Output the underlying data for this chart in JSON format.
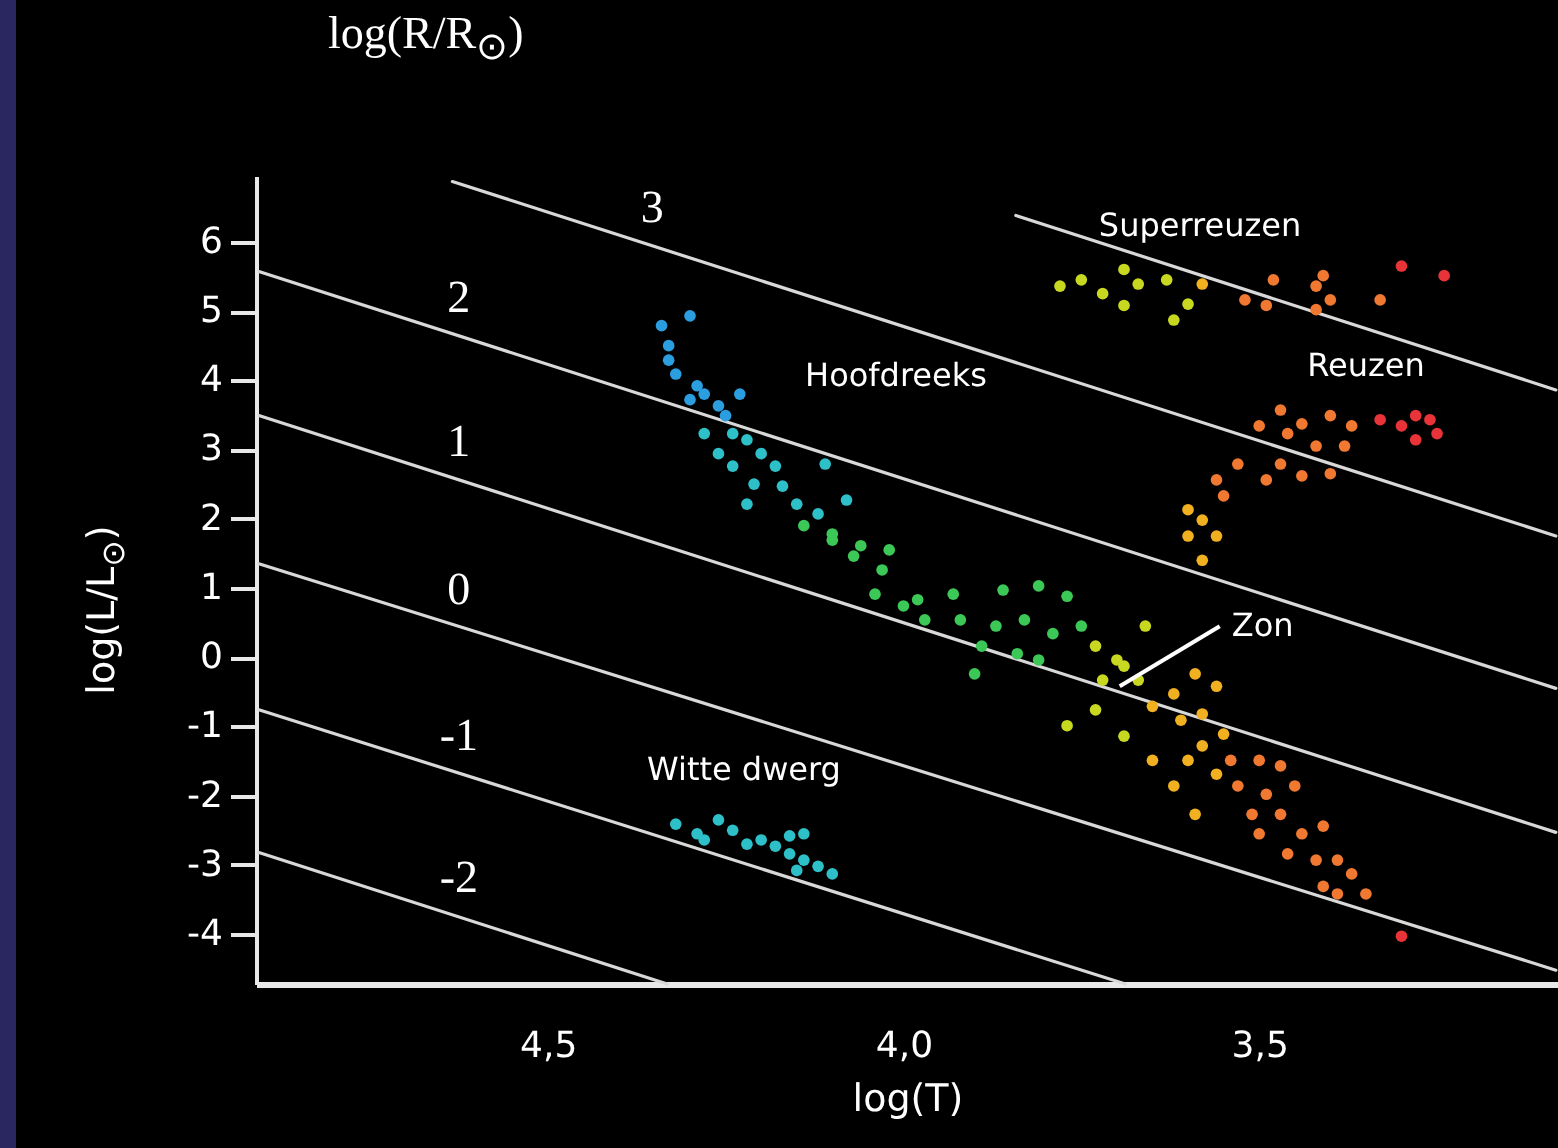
{
  "chart_data": {
    "type": "scatter",
    "xlabel": "log(T)",
    "ylabel": "log(L/L$_{⊙}$)",
    "legend_title": "log(R/R$_{⊙}$)",
    "marker": "circle",
    "xlim": [
      4.91,
      3.08
    ],
    "ylim": [
      -4.72,
      6.95
    ],
    "xticks": [
      {
        "value": 4.5,
        "label": "4,5"
      },
      {
        "value": 4.0,
        "label": "4,0"
      },
      {
        "value": 3.5,
        "label": "3,5"
      }
    ],
    "yticks": [
      -4,
      -3,
      -2,
      -1,
      0,
      1,
      2,
      3,
      4,
      5,
      6
    ],
    "series": [
      {
        "type": "line",
        "name": "3",
        "color": "#d8d8d8",
        "marker": "none",
        "x": [
          4.634,
          3.083
        ],
        "values": [
          6.87,
          1.75
        ]
      },
      {
        "type": "line",
        "name": "2",
        "color": "#d8d8d8",
        "marker": "none",
        "x": [
          4.906,
          3.083
        ],
        "values": [
          5.57,
          -0.45
        ]
      },
      {
        "type": "line",
        "name": "1",
        "color": "#d8d8d8",
        "marker": "none",
        "x": [
          4.906,
          3.083
        ],
        "values": [
          3.49,
          -2.53
        ]
      },
      {
        "type": "line",
        "name": "0",
        "color": "#d8d8d8",
        "marker": "none",
        "x": [
          4.906,
          3.083
        ],
        "values": [
          1.35,
          -4.52
        ]
      },
      {
        "type": "line",
        "name": "-1",
        "color": "#d8d8d8",
        "marker": "none",
        "x": [
          4.906,
          3.688
        ],
        "values": [
          -0.76,
          -4.72
        ]
      },
      {
        "type": "line",
        "name": "-2",
        "color": "#d8d8d8",
        "marker": "none",
        "x": [
          4.906,
          4.332
        ],
        "values": [
          -2.82,
          -4.72
        ]
      },
      {
        "type": "line",
        "color": "#d8d8d8",
        "marker": "none",
        "x": [
          3.842,
          3.083
        ],
        "values": [
          6.38,
          3.86
        ]
      },
      {
        "color": "#2b9ee0",
        "x": [
          4.3,
          4.34,
          4.33,
          4.33,
          4.32,
          4.29,
          4.28,
          4.23,
          4.3,
          4.26,
          4.25
        ],
        "values": [
          4.93,
          4.79,
          4.5,
          4.29,
          4.09,
          3.92,
          3.8,
          3.8,
          3.72,
          3.63,
          3.49
        ]
      },
      {
        "color": "#2ec0c8",
        "x": [
          4.28,
          4.24,
          4.22,
          4.26,
          4.2,
          4.24,
          4.18,
          4.21,
          4.17,
          4.11,
          4.15,
          4.22,
          4.12,
          4.08,
          4.32,
          4.29,
          4.26,
          4.28,
          4.24,
          4.22,
          4.2,
          4.18,
          4.16,
          4.16,
          4.14,
          4.14,
          4.12,
          4.1,
          4.15
        ],
        "values": [
          3.23,
          3.23,
          3.14,
          2.94,
          2.94,
          2.76,
          2.76,
          2.5,
          2.47,
          2.79,
          2.21,
          2.21,
          2.07,
          2.27,
          -2.41,
          -2.55,
          -2.35,
          -2.64,
          -2.5,
          -2.7,
          -2.64,
          -2.73,
          -2.58,
          -2.84,
          -2.55,
          -2.93,
          -3.02,
          -3.13,
          -3.08
        ]
      },
      {
        "color": "#3cc856",
        "x": [
          4.14,
          4.1,
          4.06,
          4.03,
          4.07,
          4.1,
          4.02,
          4.04,
          4.0,
          3.98,
          3.93,
          3.86,
          3.81,
          3.77,
          3.97,
          3.92,
          3.87,
          3.83,
          3.79,
          3.75,
          3.89,
          3.84,
          3.9,
          3.81
        ],
        "values": [
          1.9,
          1.78,
          1.61,
          1.26,
          1.46,
          1.69,
          1.55,
          0.91,
          0.74,
          0.83,
          0.91,
          0.97,
          1.03,
          0.88,
          0.54,
          0.54,
          0.45,
          0.54,
          0.34,
          0.45,
          0.16,
          0.05,
          -0.24,
          -0.04
        ]
      },
      {
        "color": "#c8d820",
        "x": [
          3.73,
          3.7,
          3.66,
          3.72,
          3.77,
          3.69,
          3.67,
          3.73,
          3.69,
          3.78,
          3.75,
          3.72,
          3.69,
          3.67,
          3.69,
          3.63,
          3.62,
          3.6
        ],
        "values": [
          0.16,
          -0.04,
          0.45,
          -0.33,
          -0.99,
          -0.13,
          -0.33,
          -0.76,
          -1.14,
          5.36,
          5.45,
          5.25,
          5.6,
          5.39,
          5.08,
          5.45,
          4.87,
          5.1
        ]
      },
      {
        "color": "#f0b020",
        "x": [
          3.65,
          3.62,
          3.59,
          3.61,
          3.65,
          3.58,
          3.56,
          3.62,
          3.59,
          3.58,
          3.55,
          3.56,
          3.6,
          3.58,
          3.6,
          3.58,
          3.6,
          3.56,
          3.58
        ],
        "values": [
          -0.71,
          -0.53,
          -0.24,
          -0.91,
          -1.49,
          -0.82,
          -0.42,
          -1.86,
          -2.27,
          -1.28,
          -1.11,
          -1.69,
          -1.49,
          5.39,
          2.13,
          1.98,
          1.75,
          1.75,
          1.4
        ]
      },
      {
        "color": "#f07830",
        "x": [
          3.54,
          3.5,
          3.47,
          3.53,
          3.49,
          3.45,
          3.51,
          3.47,
          3.5,
          3.44,
          3.41,
          3.46,
          3.42,
          3.39,
          3.41,
          3.37,
          3.35,
          3.39,
          3.52,
          3.49,
          3.48,
          3.42,
          3.41,
          3.4,
          3.42,
          3.33,
          3.47,
          3.5,
          3.46,
          3.44,
          3.4,
          3.37,
          3.42,
          3.38,
          3.47,
          3.44,
          3.4,
          3.53,
          3.49,
          3.56,
          3.55
        ],
        "values": [
          -1.49,
          -1.49,
          -1.57,
          -1.86,
          -1.98,
          -1.86,
          -2.27,
          -2.27,
          -2.55,
          -2.55,
          -2.44,
          -2.84,
          -2.93,
          -2.93,
          -3.31,
          -3.13,
          -3.42,
          -3.42,
          5.16,
          5.08,
          5.45,
          5.36,
          5.51,
          5.16,
          5.02,
          5.16,
          3.57,
          3.34,
          3.23,
          3.37,
          3.49,
          3.34,
          3.05,
          3.05,
          2.79,
          2.62,
          2.65,
          2.79,
          2.56,
          2.56,
          2.33
        ]
      },
      {
        "color": "#e83438",
        "x": [
          3.3,
          3.3,
          3.24,
          3.33,
          3.3,
          3.28,
          3.26,
          3.25,
          3.28
        ],
        "values": [
          -4.03,
          5.65,
          5.51,
          3.43,
          3.34,
          3.14,
          3.43,
          3.23,
          3.49
        ]
      }
    ],
    "annotations": [
      "Superreuzen",
      "Reuzen",
      "Hoofdreeks",
      "Witte dwerg",
      {
        "text": "Zon",
        "x": 3.696,
        "y": -0.42
      }
    ]
  }
}
